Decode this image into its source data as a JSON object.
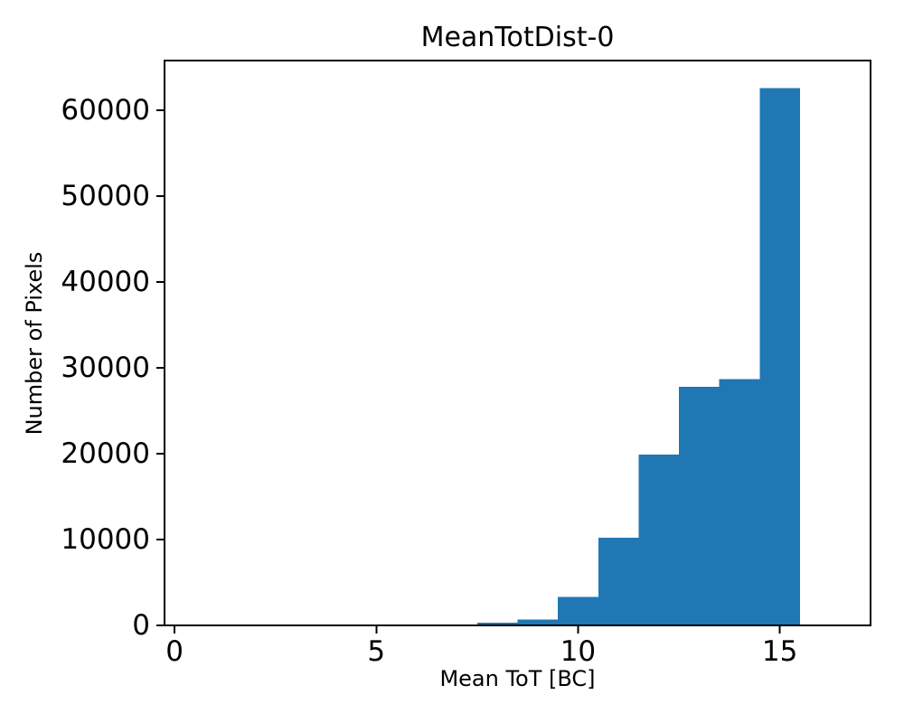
{
  "figure": {
    "background_color": "#ffffff",
    "text_color": "#000000"
  },
  "chart_data": {
    "type": "bar",
    "subtype": "histogram",
    "title": "MeanTotDist-0",
    "xlabel": "Mean ToT [BC]",
    "ylabel": "Number of Pixels",
    "bar_color": "#1f77b4",
    "axis_color": "#000000",
    "grid": false,
    "legend": null,
    "bin_edges": [
      0.5,
      1.5,
      2.5,
      3.5,
      4.5,
      5.5,
      6.5,
      7.5,
      8.5,
      9.5,
      10.5,
      11.5,
      12.5,
      13.5,
      14.5,
      15.5,
      16.5
    ],
    "bin_centers": [
      1,
      2,
      3,
      4,
      5,
      6,
      7,
      8,
      9,
      10,
      11,
      12,
      13,
      14,
      15,
      16
    ],
    "counts": [
      0,
      0,
      0,
      0,
      0,
      0,
      0,
      300,
      700,
      3300,
      10200,
      19900,
      27800,
      28700,
      62600,
      0
    ],
    "xlim": [
      -0.25,
      17.25
    ],
    "ylim": [
      0,
      65800
    ],
    "xticks": [
      0,
      5,
      10,
      15
    ],
    "yticks": [
      0,
      10000,
      20000,
      30000,
      40000,
      50000,
      60000
    ]
  }
}
